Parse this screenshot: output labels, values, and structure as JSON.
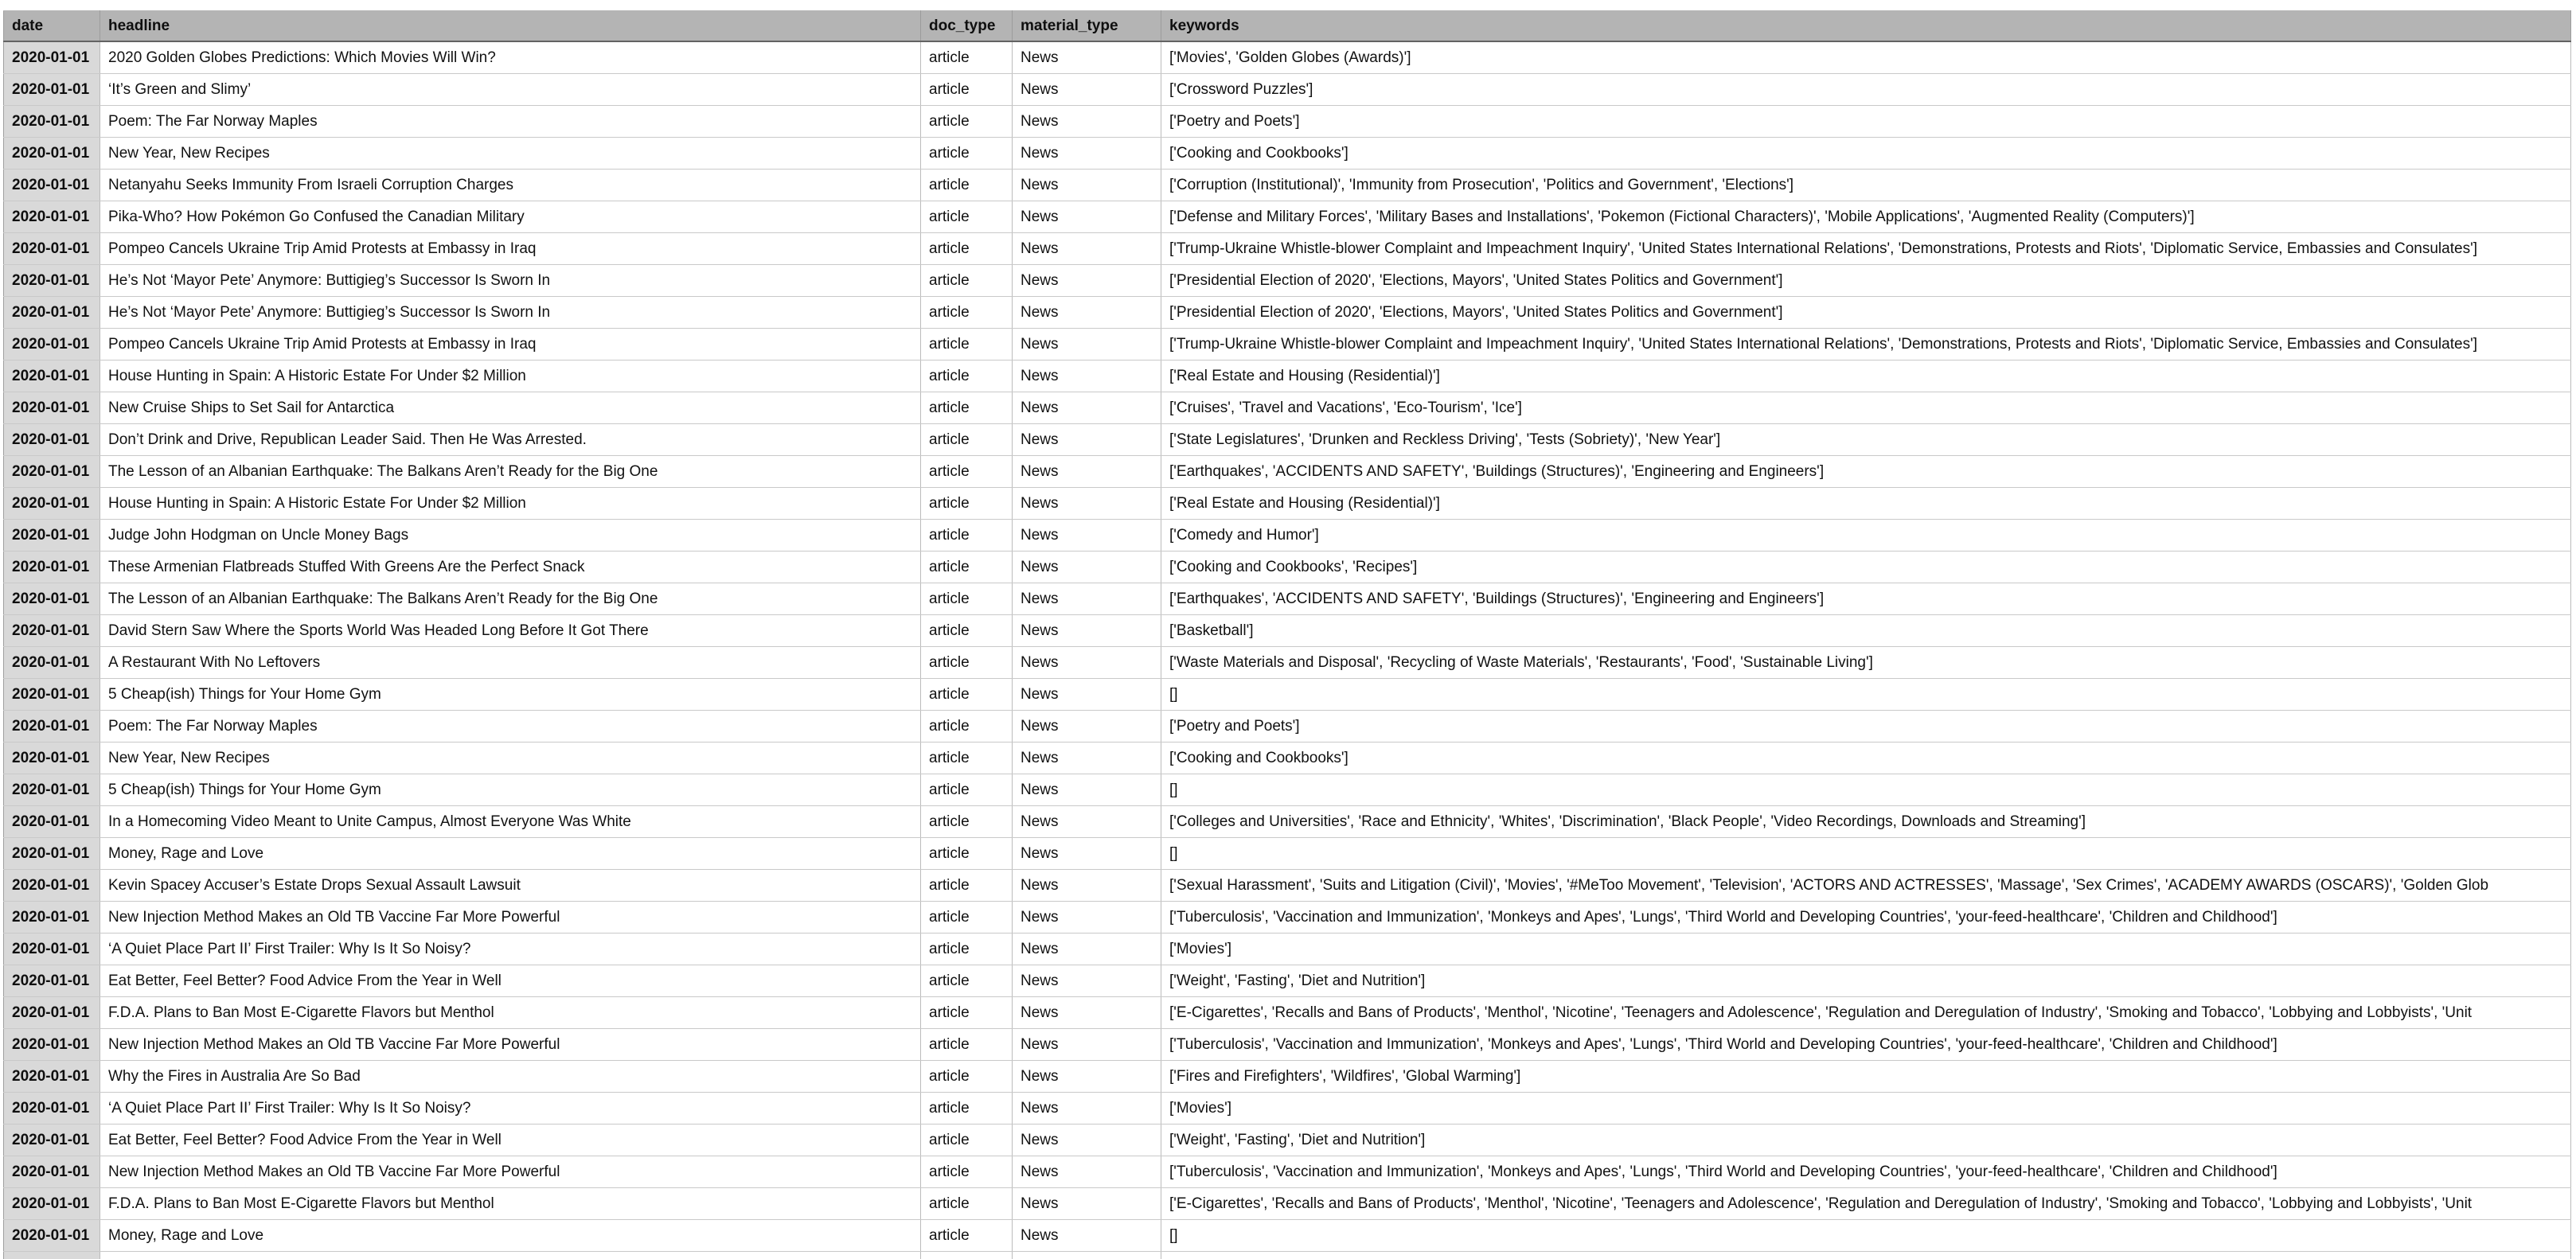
{
  "colors": {
    "header_bg": "#b4b4b4",
    "date_column_bg": "#d9d9d9",
    "row_bg": "#ffffff",
    "grid_line": "#c9c9c9",
    "header_divider": "#636363",
    "text": "#111111"
  },
  "table": {
    "columns": [
      {
        "key": "date",
        "label": "date"
      },
      {
        "key": "headline",
        "label": "headline"
      },
      {
        "key": "doc_type",
        "label": "doc_type"
      },
      {
        "key": "material_type",
        "label": "material_type"
      },
      {
        "key": "keywords",
        "label": "keywords"
      }
    ],
    "rows": [
      {
        "date": "2020-01-01",
        "headline": "2020 Golden Globes Predictions: Which Movies Will Win?",
        "doc_type": "article",
        "material_type": "News",
        "keywords": "['Movies', 'Golden Globes (Awards)']"
      },
      {
        "date": "2020-01-01",
        "headline": "‘It’s Green and Slimy’",
        "doc_type": "article",
        "material_type": "News",
        "keywords": "['Crossword Puzzles']"
      },
      {
        "date": "2020-01-01",
        "headline": "Poem: The Far Norway Maples",
        "doc_type": "article",
        "material_type": "News",
        "keywords": "['Poetry and Poets']"
      },
      {
        "date": "2020-01-01",
        "headline": "New Year, New Recipes",
        "doc_type": "article",
        "material_type": "News",
        "keywords": "['Cooking and Cookbooks']"
      },
      {
        "date": "2020-01-01",
        "headline": "Netanyahu Seeks Immunity From Israeli Corruption Charges",
        "doc_type": "article",
        "material_type": "News",
        "keywords": "['Corruption (Institutional)', 'Immunity from Prosecution', 'Politics and Government', 'Elections']"
      },
      {
        "date": "2020-01-01",
        "headline": "Pika-Who? How Pokémon Go Confused the Canadian Military",
        "doc_type": "article",
        "material_type": "News",
        "keywords": "['Defense and Military Forces', 'Military Bases and Installations', 'Pokemon (Fictional Characters)', 'Mobile Applications', 'Augmented Reality (Computers)']"
      },
      {
        "date": "2020-01-01",
        "headline": "Pompeo Cancels Ukraine Trip Amid Protests at Embassy in Iraq",
        "doc_type": "article",
        "material_type": "News",
        "keywords": "['Trump-Ukraine Whistle-blower Complaint and Impeachment Inquiry', 'United States International Relations', 'Demonstrations, Protests and Riots', 'Diplomatic Service, Embassies and Consulates']"
      },
      {
        "date": "2020-01-01",
        "headline": "He’s Not ‘Mayor Pete’ Anymore: Buttigieg’s Successor Is Sworn In",
        "doc_type": "article",
        "material_type": "News",
        "keywords": "['Presidential Election of 2020', 'Elections, Mayors', 'United States Politics and Government']"
      },
      {
        "date": "2020-01-01",
        "headline": "He’s Not ‘Mayor Pete’ Anymore: Buttigieg’s Successor Is Sworn In",
        "doc_type": "article",
        "material_type": "News",
        "keywords": "['Presidential Election of 2020', 'Elections, Mayors', 'United States Politics and Government']"
      },
      {
        "date": "2020-01-01",
        "headline": "Pompeo Cancels Ukraine Trip Amid Protests at Embassy in Iraq",
        "doc_type": "article",
        "material_type": "News",
        "keywords": "['Trump-Ukraine Whistle-blower Complaint and Impeachment Inquiry', 'United States International Relations', 'Demonstrations, Protests and Riots', 'Diplomatic Service, Embassies and Consulates']"
      },
      {
        "date": "2020-01-01",
        "headline": "House Hunting in Spain: A Historic Estate For Under $2 Million",
        "doc_type": "article",
        "material_type": "News",
        "keywords": "['Real Estate and Housing (Residential)']"
      },
      {
        "date": "2020-01-01",
        "headline": "New Cruise Ships to Set Sail for Antarctica",
        "doc_type": "article",
        "material_type": "News",
        "keywords": "['Cruises', 'Travel and Vacations', 'Eco-Tourism', 'Ice']"
      },
      {
        "date": "2020-01-01",
        "headline": "Don’t Drink and Drive, Republican Leader Said. Then He Was Arrested.",
        "doc_type": "article",
        "material_type": "News",
        "keywords": "['State Legislatures', 'Drunken and Reckless Driving', 'Tests (Sobriety)', 'New Year']"
      },
      {
        "date": "2020-01-01",
        "headline": "The Lesson of an Albanian Earthquake: The Balkans Aren’t Ready for the Big One",
        "doc_type": "article",
        "material_type": "News",
        "keywords": "['Earthquakes', 'ACCIDENTS AND SAFETY', 'Buildings (Structures)', 'Engineering and Engineers']"
      },
      {
        "date": "2020-01-01",
        "headline": "House Hunting in Spain: A Historic Estate For Under $2 Million",
        "doc_type": "article",
        "material_type": "News",
        "keywords": "['Real Estate and Housing (Residential)']"
      },
      {
        "date": "2020-01-01",
        "headline": "Judge John Hodgman on Uncle Money Bags",
        "doc_type": "article",
        "material_type": "News",
        "keywords": "['Comedy and Humor']"
      },
      {
        "date": "2020-01-01",
        "headline": "These Armenian Flatbreads Stuffed With Greens Are the Perfect Snack",
        "doc_type": "article",
        "material_type": "News",
        "keywords": "['Cooking and Cookbooks', 'Recipes']"
      },
      {
        "date": "2020-01-01",
        "headline": "The Lesson of an Albanian Earthquake: The Balkans Aren’t Ready for the Big One",
        "doc_type": "article",
        "material_type": "News",
        "keywords": "['Earthquakes', 'ACCIDENTS AND SAFETY', 'Buildings (Structures)', 'Engineering and Engineers']"
      },
      {
        "date": "2020-01-01",
        "headline": "David Stern Saw Where the Sports World Was Headed Long Before It Got There",
        "doc_type": "article",
        "material_type": "News",
        "keywords": "['Basketball']"
      },
      {
        "date": "2020-01-01",
        "headline": "A Restaurant With No Leftovers",
        "doc_type": "article",
        "material_type": "News",
        "keywords": "['Waste Materials and Disposal', 'Recycling of Waste Materials', 'Restaurants', 'Food', 'Sustainable Living']"
      },
      {
        "date": "2020-01-01",
        "headline": "5 Cheap(ish) Things for Your Home Gym",
        "doc_type": "article",
        "material_type": "News",
        "keywords": "[]"
      },
      {
        "date": "2020-01-01",
        "headline": "Poem: The Far Norway Maples",
        "doc_type": "article",
        "material_type": "News",
        "keywords": "['Poetry and Poets']"
      },
      {
        "date": "2020-01-01",
        "headline": "New Year, New Recipes",
        "doc_type": "article",
        "material_type": "News",
        "keywords": "['Cooking and Cookbooks']"
      },
      {
        "date": "2020-01-01",
        "headline": "5 Cheap(ish) Things for Your Home Gym",
        "doc_type": "article",
        "material_type": "News",
        "keywords": "[]"
      },
      {
        "date": "2020-01-01",
        "headline": "In a Homecoming Video Meant to Unite Campus, Almost Everyone Was White",
        "doc_type": "article",
        "material_type": "News",
        "keywords": "['Colleges and Universities', 'Race and Ethnicity', 'Whites', 'Discrimination', 'Black People', 'Video Recordings, Downloads and Streaming']"
      },
      {
        "date": "2020-01-01",
        "headline": "Money, Rage and Love",
        "doc_type": "article",
        "material_type": "News",
        "keywords": "[]"
      },
      {
        "date": "2020-01-01",
        "headline": "Kevin Spacey Accuser’s Estate Drops Sexual Assault Lawsuit",
        "doc_type": "article",
        "material_type": "News",
        "keywords": "['Sexual Harassment', 'Suits and Litigation (Civil)', 'Movies', '#MeToo Movement', 'Television', 'ACTORS AND ACTRESSES', 'Massage', 'Sex Crimes', 'ACADEMY AWARDS (OSCARS)', 'Golden Glob"
      },
      {
        "date": "2020-01-01",
        "headline": "New Injection Method Makes an Old TB Vaccine Far More Powerful",
        "doc_type": "article",
        "material_type": "News",
        "keywords": "['Tuberculosis', 'Vaccination and Immunization', 'Monkeys and Apes', 'Lungs', 'Third World and Developing Countries', 'your-feed-healthcare', 'Children and Childhood']"
      },
      {
        "date": "2020-01-01",
        "headline": "‘A Quiet Place Part II’ First Trailer: Why Is It So Noisy?",
        "doc_type": "article",
        "material_type": "News",
        "keywords": "['Movies']"
      },
      {
        "date": "2020-01-01",
        "headline": "Eat Better, Feel Better? Food Advice From the Year in Well",
        "doc_type": "article",
        "material_type": "News",
        "keywords": "['Weight', 'Fasting', 'Diet and Nutrition']"
      },
      {
        "date": "2020-01-01",
        "headline": "F.D.A. Plans to Ban Most E-Cigarette Flavors but Menthol",
        "doc_type": "article",
        "material_type": "News",
        "keywords": "['E-Cigarettes', 'Recalls and Bans of Products', 'Menthol', 'Nicotine', 'Teenagers and Adolescence', 'Regulation and Deregulation of Industry', 'Smoking and Tobacco', 'Lobbying and Lobbyists', 'Unit"
      },
      {
        "date": "2020-01-01",
        "headline": "New Injection Method Makes an Old TB Vaccine Far More Powerful",
        "doc_type": "article",
        "material_type": "News",
        "keywords": "['Tuberculosis', 'Vaccination and Immunization', 'Monkeys and Apes', 'Lungs', 'Third World and Developing Countries', 'your-feed-healthcare', 'Children and Childhood']"
      },
      {
        "date": "2020-01-01",
        "headline": "Why the Fires in Australia Are So Bad",
        "doc_type": "article",
        "material_type": "News",
        "keywords": "['Fires and Firefighters', 'Wildfires', 'Global Warming']"
      },
      {
        "date": "2020-01-01",
        "headline": "‘A Quiet Place Part II’ First Trailer: Why Is It So Noisy?",
        "doc_type": "article",
        "material_type": "News",
        "keywords": "['Movies']"
      },
      {
        "date": "2020-01-01",
        "headline": "Eat Better, Feel Better? Food Advice From the Year in Well",
        "doc_type": "article",
        "material_type": "News",
        "keywords": "['Weight', 'Fasting', 'Diet and Nutrition']"
      },
      {
        "date": "2020-01-01",
        "headline": "New Injection Method Makes an Old TB Vaccine Far More Powerful",
        "doc_type": "article",
        "material_type": "News",
        "keywords": "['Tuberculosis', 'Vaccination and Immunization', 'Monkeys and Apes', 'Lungs', 'Third World and Developing Countries', 'your-feed-healthcare', 'Children and Childhood']"
      },
      {
        "date": "2020-01-01",
        "headline": "F.D.A. Plans to Ban Most E-Cigarette Flavors but Menthol",
        "doc_type": "article",
        "material_type": "News",
        "keywords": "['E-Cigarettes', 'Recalls and Bans of Products', 'Menthol', 'Nicotine', 'Teenagers and Adolescence', 'Regulation and Deregulation of Industry', 'Smoking and Tobacco', 'Lobbying and Lobbyists', 'Unit"
      },
      {
        "date": "2020-01-01",
        "headline": "Money, Rage and Love",
        "doc_type": "article",
        "material_type": "News",
        "keywords": "[]"
      }
    ]
  }
}
